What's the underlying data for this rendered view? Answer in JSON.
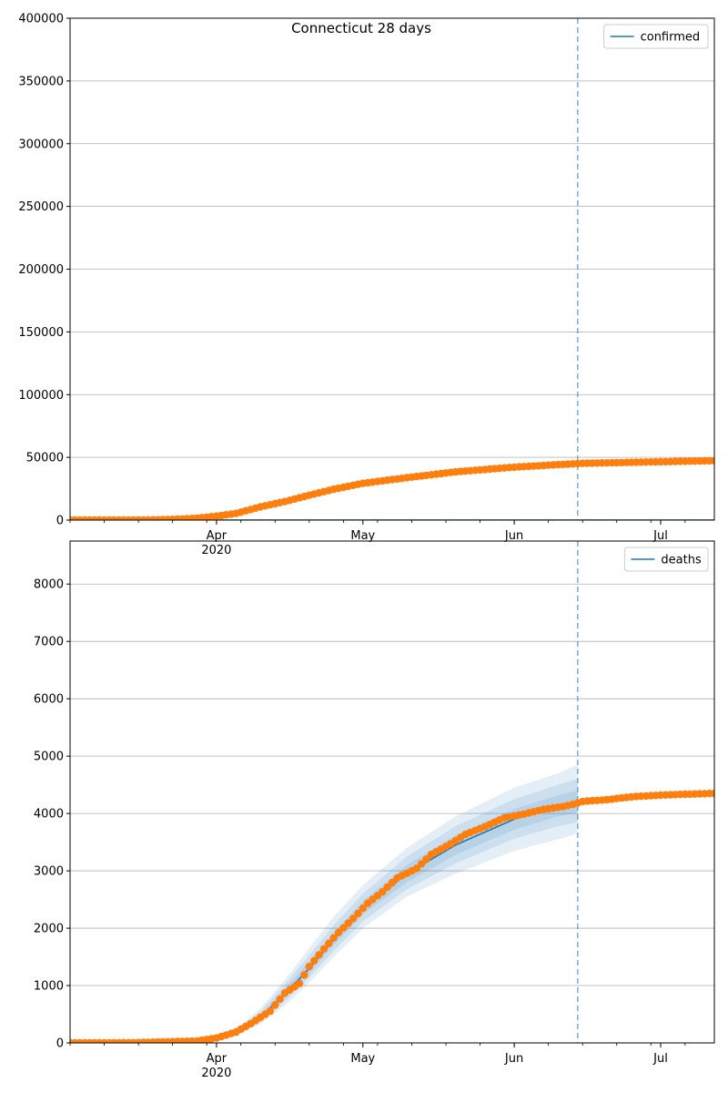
{
  "chart_data": [
    {
      "type": "line",
      "title": "Connecticut 28 days",
      "xlabel": "",
      "ylabel": "",
      "x_range": [
        "2020-03-02",
        "2020-07-12"
      ],
      "ylim": [
        0,
        400000
      ],
      "yticks": [
        0,
        50000,
        100000,
        150000,
        200000,
        250000,
        300000,
        350000,
        400000
      ],
      "x_ticks": [
        {
          "date": "2020-04-01",
          "label": "Apr",
          "sublabel": "2020"
        },
        {
          "date": "2020-05-01",
          "label": "May",
          "sublabel": ""
        },
        {
          "date": "2020-06-01",
          "label": "Jun",
          "sublabel": ""
        },
        {
          "date": "2020-07-01",
          "label": "Jul",
          "sublabel": ""
        }
      ],
      "grid": "y",
      "legend_position": "top-right",
      "vline_date": "2020-06-14",
      "series": [
        {
          "name": "confirmed",
          "kind": "line",
          "color": "#1f77b4",
          "points": [
            [
              "2020-03-02",
              0
            ],
            [
              "2020-07-12",
              0
            ]
          ]
        },
        {
          "name": "",
          "kind": "markers",
          "color": "#ff7f0e",
          "points": [
            [
              "2020-03-02",
              0
            ],
            [
              "2020-03-10",
              0
            ],
            [
              "2020-03-15",
              20
            ],
            [
              "2020-03-20",
              200
            ],
            [
              "2020-03-25",
              875
            ],
            [
              "2020-03-28",
              1524
            ],
            [
              "2020-04-01",
              3128
            ],
            [
              "2020-04-05",
              5276
            ],
            [
              "2020-04-10",
              10538
            ],
            [
              "2020-04-15",
              14755
            ],
            [
              "2020-04-20",
              19815
            ],
            [
              "2020-04-25",
              24582
            ],
            [
              "2020-05-01",
              29287
            ],
            [
              "2020-05-10",
              33765
            ],
            [
              "2020-05-20",
              38430
            ],
            [
              "2020-06-01",
              42201
            ],
            [
              "2020-06-10",
              44179
            ],
            [
              "2020-06-13",
              44800
            ],
            [
              "2020-06-15",
              45200
            ],
            [
              "2020-06-25",
              46000
            ],
            [
              "2020-07-05",
              46800
            ],
            [
              "2020-07-12",
              47300
            ]
          ]
        }
      ]
    },
    {
      "type": "line",
      "title": "",
      "xlabel": "",
      "ylabel": "",
      "x_range": [
        "2020-03-02",
        "2020-07-12"
      ],
      "ylim": [
        0,
        8750
      ],
      "yticks": [
        0,
        1000,
        2000,
        3000,
        4000,
        5000,
        6000,
        7000,
        8000
      ],
      "x_ticks": [
        {
          "date": "2020-04-01",
          "label": "Apr",
          "sublabel": "2020"
        },
        {
          "date": "2020-05-01",
          "label": "May",
          "sublabel": ""
        },
        {
          "date": "2020-06-01",
          "label": "Jun",
          "sublabel": ""
        },
        {
          "date": "2020-07-01",
          "label": "Jul",
          "sublabel": ""
        }
      ],
      "grid": "y",
      "legend_position": "top-right",
      "vline_date": "2020-06-14",
      "series": [
        {
          "name": "deaths",
          "kind": "line",
          "color": "#1f77b4",
          "points": [
            [
              "2020-03-02",
              0
            ],
            [
              "2020-03-25",
              20
            ],
            [
              "2020-03-30",
              60
            ],
            [
              "2020-04-05",
              200
            ],
            [
              "2020-04-10",
              450
            ],
            [
              "2020-04-15",
              850
            ],
            [
              "2020-04-20",
              1300
            ],
            [
              "2020-04-25",
              1800
            ],
            [
              "2020-05-01",
              2350
            ],
            [
              "2020-05-10",
              2950
            ],
            [
              "2020-05-20",
              3450
            ],
            [
              "2020-06-01",
              3900
            ],
            [
              "2020-06-10",
              4130
            ],
            [
              "2020-06-14",
              4180
            ]
          ]
        },
        {
          "name": "",
          "kind": "markers",
          "color": "#ff7f0e",
          "points": [
            [
              "2020-03-02",
              0
            ],
            [
              "2020-03-15",
              3
            ],
            [
              "2020-03-22",
              19
            ],
            [
              "2020-03-28",
              33
            ],
            [
              "2020-04-01",
              85
            ],
            [
              "2020-04-05",
              189
            ],
            [
              "2020-04-08",
              335
            ],
            [
              "2020-04-12",
              554
            ],
            [
              "2020-04-15",
              868
            ],
            [
              "2020-04-18",
              1036
            ],
            [
              "2020-04-20",
              1331
            ],
            [
              "2020-04-23",
              1639
            ],
            [
              "2020-04-26",
              1924
            ],
            [
              "2020-04-29",
              2168
            ],
            [
              "2020-05-02",
              2436
            ],
            [
              "2020-05-05",
              2633
            ],
            [
              "2020-05-08",
              2874
            ],
            [
              "2020-05-12",
              3041
            ],
            [
              "2020-05-15",
              3285
            ],
            [
              "2020-05-19",
              3472
            ],
            [
              "2020-05-22",
              3637
            ],
            [
              "2020-05-26",
              3769
            ],
            [
              "2020-05-30",
              3924
            ],
            [
              "2020-06-03",
              3989
            ],
            [
              "2020-06-07",
              4071
            ],
            [
              "2020-06-11",
              4120
            ],
            [
              "2020-06-13",
              4159
            ],
            [
              "2020-06-15",
              4210
            ],
            [
              "2020-06-20",
              4240
            ],
            [
              "2020-06-25",
              4290
            ],
            [
              "2020-07-01",
              4320
            ],
            [
              "2020-07-06",
              4335
            ],
            [
              "2020-07-12",
              4350
            ]
          ]
        }
      ],
      "bands": [
        {
          "color": "#1f77b4",
          "opacity": 0.12,
          "points": [
            [
              "2020-03-28",
              30,
              40
            ],
            [
              "2020-04-05",
              150,
              250
            ],
            [
              "2020-04-10",
              330,
              600
            ],
            [
              "2020-04-15",
              650,
              1100
            ],
            [
              "2020-04-20",
              1050,
              1650
            ],
            [
              "2020-04-25",
              1500,
              2200
            ],
            [
              "2020-05-01",
              2000,
              2750
            ],
            [
              "2020-05-10",
              2550,
              3400
            ],
            [
              "2020-05-20",
              2950,
              3950
            ],
            [
              "2020-06-01",
              3350,
              4450
            ],
            [
              "2020-06-10",
              3550,
              4700
            ],
            [
              "2020-06-14",
              3650,
              4850
            ]
          ]
        },
        {
          "color": "#1f77b4",
          "opacity": 0.12,
          "points": [
            [
              "2020-03-28",
              32,
              38
            ],
            [
              "2020-04-05",
              165,
              235
            ],
            [
              "2020-04-10",
              370,
              550
            ],
            [
              "2020-04-15",
              720,
              1020
            ],
            [
              "2020-04-20",
              1140,
              1530
            ],
            [
              "2020-04-25",
              1600,
              2050
            ],
            [
              "2020-05-01",
              2120,
              2600
            ],
            [
              "2020-05-10",
              2680,
              3250
            ],
            [
              "2020-05-20",
              3130,
              3780
            ],
            [
              "2020-06-01",
              3560,
              4250
            ],
            [
              "2020-06-10",
              3780,
              4500
            ],
            [
              "2020-06-14",
              3850,
              4600
            ]
          ]
        },
        {
          "color": "#1f77b4",
          "opacity": 0.12,
          "points": [
            [
              "2020-03-28",
              34,
              36
            ],
            [
              "2020-04-05",
              180,
              220
            ],
            [
              "2020-04-10",
              410,
              500
            ],
            [
              "2020-04-15",
              780,
              940
            ],
            [
              "2020-04-20",
              1220,
              1420
            ],
            [
              "2020-04-25",
              1700,
              1920
            ],
            [
              "2020-05-01",
              2240,
              2470
            ],
            [
              "2020-05-10",
              2800,
              3100
            ],
            [
              "2020-05-20",
              3280,
              3620
            ],
            [
              "2020-06-01",
              3720,
              4080
            ],
            [
              "2020-06-10",
              3950,
              4320
            ],
            [
              "2020-06-14",
              4020,
              4400
            ]
          ]
        }
      ]
    }
  ]
}
